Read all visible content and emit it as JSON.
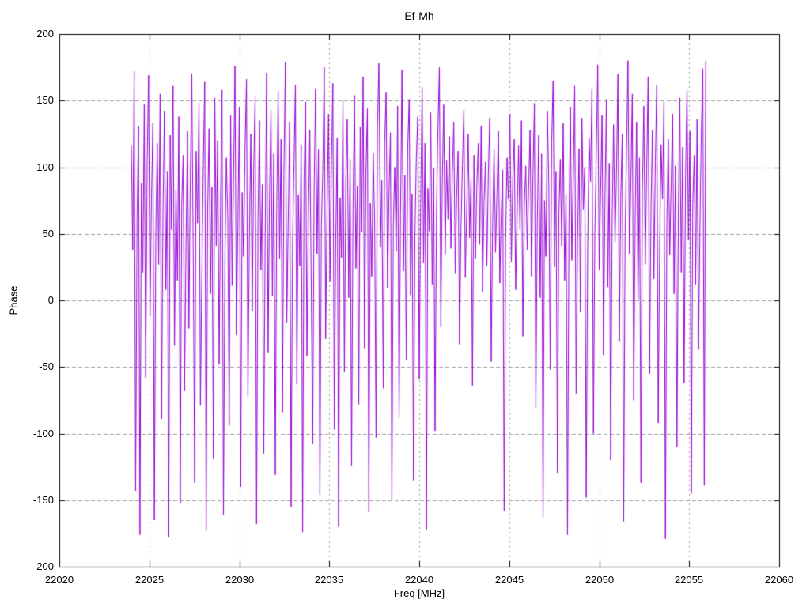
{
  "page": {
    "background": "#ffffff"
  },
  "chart_data": {
    "type": "line",
    "title": "Ef-Mh",
    "xlabel": "Freq [MHz]",
    "ylabel": "Phase",
    "xlim": [
      22020,
      22060
    ],
    "ylim": [
      -200,
      200
    ],
    "x_ticks": [
      22020,
      22025,
      22030,
      22035,
      22040,
      22045,
      22050,
      22055,
      22060
    ],
    "y_ticks": [
      -200,
      -150,
      -100,
      -50,
      0,
      50,
      100,
      150,
      200
    ],
    "grid": true,
    "legend": "none",
    "line_color": "#9400d3",
    "grid_color": "#9e9e9e",
    "axis_color": "#000000",
    "series": [
      {
        "x_start": 22024.0,
        "x_step": 0.08,
        "y": [
          116,
          38,
          172,
          -143,
          62,
          131,
          -176,
          88,
          21,
          147,
          -58,
          104,
          169,
          -12,
          76,
          133,
          -165,
          49,
          118,
          27,
          155,
          -89,
          66,
          142,
          8,
          97,
          -178,
          124,
          53,
          161,
          -34,
          83,
          15,
          138,
          -152,
          71,
          109,
          -68,
          44,
          127,
          -21,
          93,
          170,
          36,
          -137,
          112,
          58,
          148,
          -79,
          19,
          101,
          164,
          -173,
          67,
          129,
          5,
          85,
          -119,
          152,
          41,
          120,
          -48,
          74,
          158,
          -161,
          29,
          107,
          63,
          -94,
          139,
          11,
          92,
          176,
          -26,
          55,
          145,
          -140,
          81,
          33,
          114,
          166,
          -72,
          47,
          125,
          -8,
          99,
          153,
          -168,
          61,
          135,
          23,
          87,
          -115,
          50,
          171,
          -39,
          78,
          143,
          3,
          110,
          -131,
          69,
          157,
          31,
          121,
          -84,
          95,
          179,
          -17,
          59,
          134,
          -155,
          42,
          103,
          162,
          -63,
          79,
          26,
          117,
          -174,
          91,
          149,
          -42,
          64,
          128,
          7,
          -108,
          83,
          159,
          35,
          113,
          -146,
          56,
          96,
          175,
          -29,
          70,
          140,
          14,
          102,
          163,
          -97,
          45,
          122,
          -170,
          77,
          32,
          150,
          -54,
          89,
          136,
          2,
          106,
          -124,
          68,
          154,
          24,
          86,
          -78,
          130,
          51,
          168,
          -36,
          98,
          144,
          -159,
          73,
          18,
          111,
          60,
          -103,
          132,
          178,
          40,
          90,
          -66,
          119,
          156,
          9,
          82,
          126,
          -150,
          57,
          100,
          37,
          146,
          -88,
          65,
          173,
          22,
          94,
          -45,
          115,
          151,
          4,
          80,
          -135,
          48,
          108,
          138,
          -59,
          72,
          160,
          28,
          118,
          -172,
          84,
          52,
          141,
          12,
          99,
          -98,
          67,
          129,
          175,
          -20,
          88,
          147,
          34,
          105,
          61,
          123,
          39,
          96,
          134,
          20,
          78,
          112,
          -33,
          54,
          102,
          143,
          17,
          69,
          125,
          47,
          91,
          -64,
          109,
          31,
          86,
          118,
          42,
          131,
          6,
          74,
          104,
          26,
          95,
          137,
          -46,
          58,
          113,
          36,
          81,
          127,
          13,
          66,
          98,
          -158,
          44,
          107,
          76,
          140,
          29,
          92,
          121,
          8,
          63,
          116,
          53,
          135,
          -27,
          71,
          101,
          38,
          85,
          128,
          18,
          94,
          148,
          -81,
          59,
          124,
          2,
          110,
          -163,
          75,
          33,
          142,
          87,
          -52,
          119,
          165,
          25,
          97,
          -130,
          64,
          106,
          41,
          133,
          15,
          79,
          -176,
          55,
          145,
          30,
          93,
          161,
          -70,
          46,
          114,
          -9,
          137,
          68,
          100,
          -148,
          37,
          122,
          89,
          159,
          -100,
          50,
          111,
          177,
          23,
          82,
          139,
          -41,
          73,
          151,
          10,
          103,
          -120,
          60,
          132,
          43,
          96,
          170,
          -31,
          77,
          125,
          -166,
          49,
          113,
          180,
          35,
          90,
          155,
          -75,
          62,
          134,
          1,
          107,
          -137,
          83,
          146,
          27,
          99,
          168,
          -55,
          70,
          128,
          16,
          104,
          162,
          -92,
          40,
          117,
          76,
          149,
          -179,
          58,
          121,
          34,
          88,
          140,
          5,
          101,
          -110,
          66,
          152,
          21,
          115,
          -62,
          93,
          158,
          45,
          127,
          -145,
          72,
          109,
          12,
          136,
          -37,
          56,
          130,
          174,
          -139,
          180
        ]
      }
    ]
  }
}
